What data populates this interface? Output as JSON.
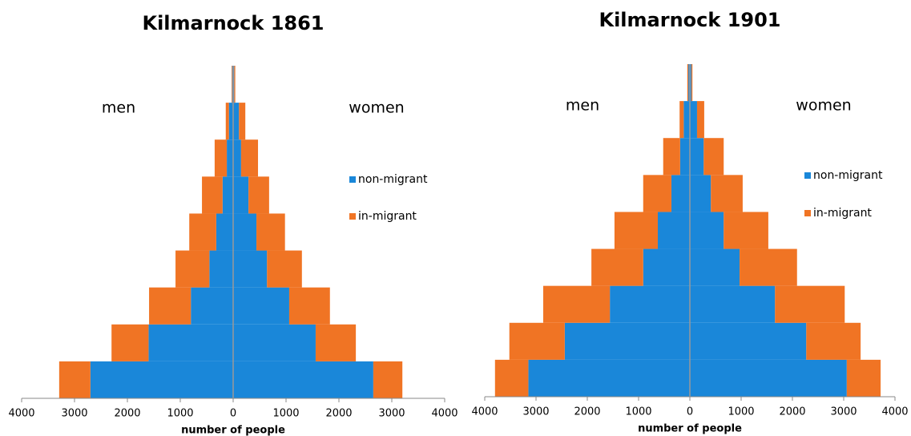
{
  "chart_data": [
    {
      "type": "pyramid",
      "title": "Kilmarnock 1861",
      "left_label": "men",
      "right_label": "women",
      "x_label": "number of people",
      "xlim": [
        -4000,
        4000
      ],
      "xticks": [
        {
          "value": -4000,
          "label": "4000"
        },
        {
          "value": -3000,
          "label": "3000"
        },
        {
          "value": -2000,
          "label": "2000"
        },
        {
          "value": -1000,
          "label": "1000"
        },
        0,
        1000,
        2000,
        3000,
        4000
      ],
      "series": [
        {
          "name": "non-migrant",
          "color": "#1a87d9",
          "men": [
            2700,
            1600,
            800,
            450,
            320,
            200,
            120,
            80,
            20
          ],
          "women": [
            2650,
            1560,
            1060,
            640,
            440,
            290,
            150,
            110,
            20
          ]
        },
        {
          "name": "in-migrant",
          "color": "#f07424",
          "men": [
            590,
            700,
            790,
            640,
            510,
            390,
            230,
            60,
            10
          ],
          "women": [
            550,
            760,
            770,
            660,
            540,
            390,
            320,
            120,
            20
          ]
        }
      ]
    },
    {
      "type": "pyramid",
      "title": "Kilmarnock 1901",
      "left_label": "men",
      "right_label": "women",
      "x_label": "number of people",
      "xlim": [
        -4000,
        4000
      ],
      "xticks": [
        {
          "value": -4000,
          "label": "4000"
        },
        {
          "value": -3000,
          "label": "3000"
        },
        {
          "value": -2000,
          "label": "2000"
        },
        {
          "value": -1000,
          "label": "1000"
        },
        0,
        1000,
        2000,
        3000,
        4000
      ],
      "series": [
        {
          "name": "non-migrant",
          "color": "#1a87d9",
          "men": [
            3150,
            2440,
            1560,
            910,
            625,
            360,
            190,
            120,
            30
          ],
          "women": [
            3060,
            2270,
            1660,
            970,
            660,
            410,
            270,
            140,
            30
          ]
        },
        {
          "name": "in-migrant",
          "color": "#f07424",
          "men": [
            650,
            1080,
            1300,
            1010,
            845,
            550,
            330,
            80,
            20
          ],
          "women": [
            660,
            1060,
            1360,
            1120,
            870,
            620,
            390,
            140,
            20
          ]
        }
      ]
    }
  ]
}
